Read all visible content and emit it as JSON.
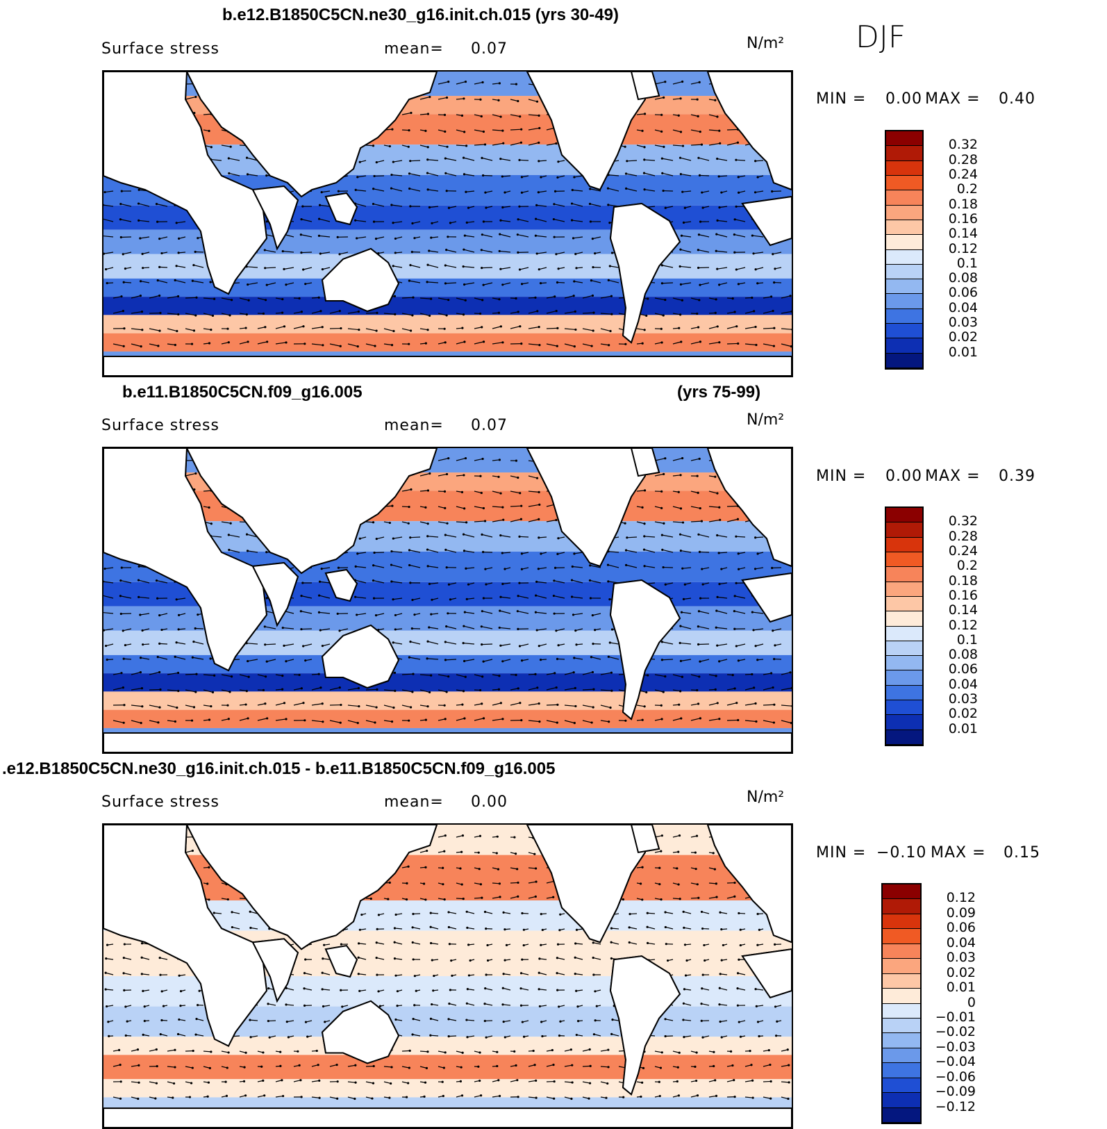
{
  "season": "DJF",
  "chart_data": [
    {
      "type": "contour-map",
      "title": "b.e12.B1850C5CN.ne30_g16.init.ch.015 (yrs 30-49)",
      "variable": "Surface stress",
      "mean_label": "mean=",
      "mean": "0.07",
      "units": "N/m²",
      "min_label": "MIN =",
      "min": "0.00",
      "max_label": "MAX =",
      "max": "0.40",
      "levels": [
        "0.32",
        "0.28",
        "0.24",
        "0.2",
        "0.18",
        "0.16",
        "0.14",
        "0.12",
        "0.1",
        "0.08",
        "0.06",
        "0.04",
        "0.03",
        "0.02",
        "0.01"
      ],
      "colors": [
        "#8b0000",
        "#b01a06",
        "#d8340c",
        "#f05a24",
        "#f7845a",
        "#fba67e",
        "#fdc7a6",
        "#feebd9",
        "#dbe9fb",
        "#b9d2f6",
        "#93b8f1",
        "#6b99ea",
        "#3e74e2",
        "#1f4fd4",
        "#0d2fb3",
        "#04177f"
      ]
    },
    {
      "type": "contour-map",
      "title_left": "b.e11.B1850C5CN.f09_g16.005",
      "title_right": "(yrs 75-99)",
      "variable": "Surface stress",
      "mean_label": "mean=",
      "mean": "0.07",
      "units": "N/m²",
      "min_label": "MIN =",
      "min": "0.00",
      "max_label": "MAX =",
      "max": "0.39",
      "levels": [
        "0.32",
        "0.28",
        "0.24",
        "0.2",
        "0.18",
        "0.16",
        "0.14",
        "0.12",
        "0.1",
        "0.08",
        "0.06",
        "0.04",
        "0.03",
        "0.02",
        "0.01"
      ],
      "colors": [
        "#8b0000",
        "#b01a06",
        "#d8340c",
        "#f05a24",
        "#f7845a",
        "#fba67e",
        "#fdc7a6",
        "#feebd9",
        "#dbe9fb",
        "#b9d2f6",
        "#93b8f1",
        "#6b99ea",
        "#3e74e2",
        "#1f4fd4",
        "#0d2fb3",
        "#04177f"
      ]
    },
    {
      "type": "contour-map",
      "title": ".e12.B1850C5CN.ne30_g16.init.ch.015 - b.e11.B1850C5CN.f09_g16.005",
      "variable": "Surface stress",
      "mean_label": "mean=",
      "mean": "0.00",
      "units": "N/m²",
      "min_label": "MIN =",
      "min": "−0.10",
      "max_label": "MAX =",
      "max": "0.15",
      "levels": [
        "0.12",
        "0.09",
        "0.06",
        "0.04",
        "0.03",
        "0.02",
        "0.01",
        "0",
        "−0.01",
        "−0.02",
        "−0.03",
        "−0.04",
        "−0.06",
        "−0.09",
        "−0.12"
      ],
      "colors": [
        "#8b0000",
        "#b01a06",
        "#d8340c",
        "#f05a24",
        "#f7845a",
        "#fba67e",
        "#fdc7a6",
        "#feebd9",
        "#dbe9fb",
        "#b9d2f6",
        "#93b8f1",
        "#6b99ea",
        "#3e74e2",
        "#1f4fd4",
        "#0d2fb3",
        "#04177f"
      ]
    }
  ]
}
